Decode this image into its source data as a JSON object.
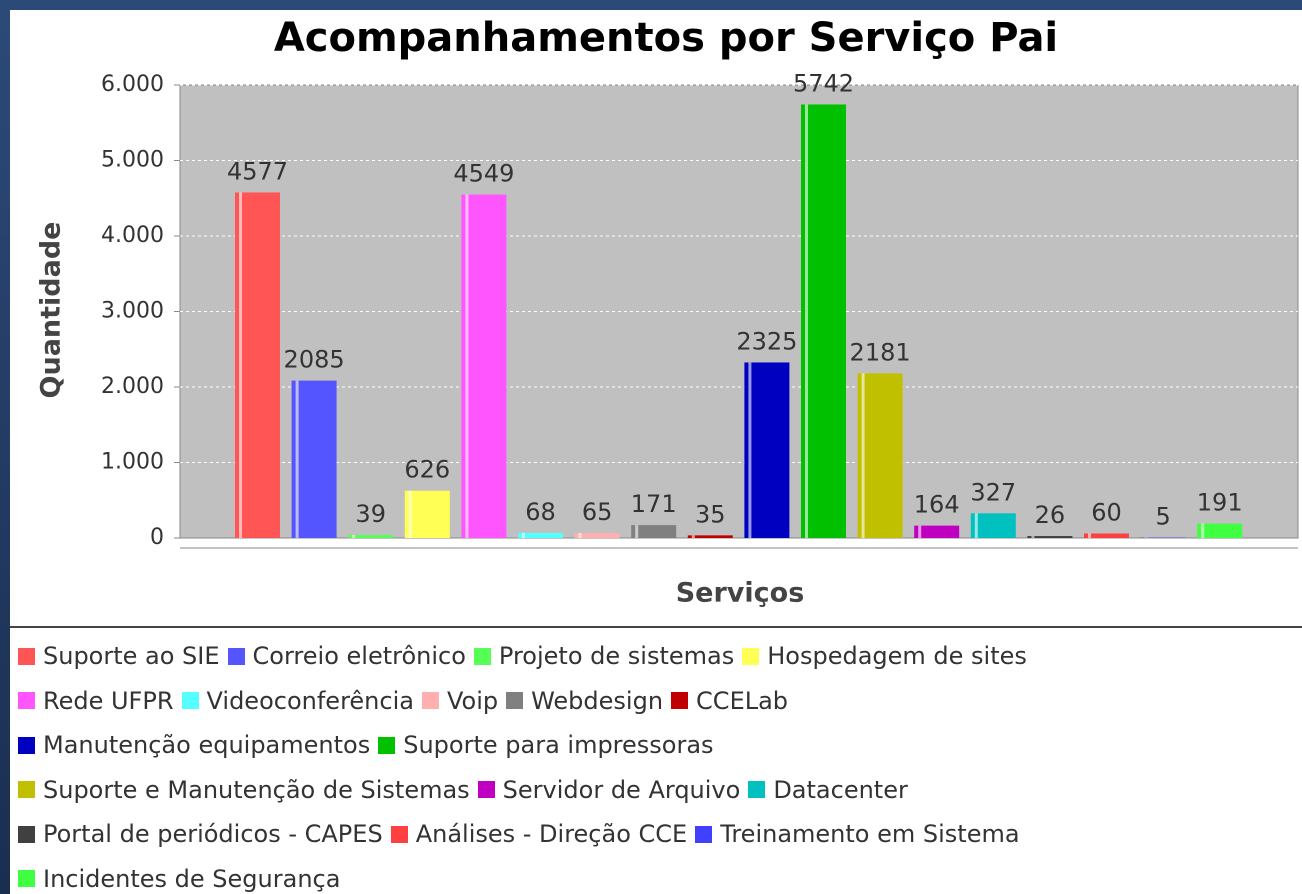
{
  "chart_data": {
    "type": "bar",
    "title": "Acompanhamentos por Serviço Pai",
    "xlabel": "Serviços",
    "ylabel": "Quantidade",
    "categories": [
      null
    ],
    "series": [
      {
        "name": "Suporte ao SIE",
        "color": "#ff5555",
        "values": [
          4577
        ]
      },
      {
        "name": "Correio eletrônico",
        "color": "#5555ff",
        "values": [
          2085
        ]
      },
      {
        "name": "Projeto de sistemas",
        "color": "#55ff55",
        "values": [
          39
        ]
      },
      {
        "name": "Hospedagem de sites",
        "color": "#ffff55",
        "values": [
          626
        ]
      },
      {
        "name": "Rede UFPR",
        "color": "#ff55ff",
        "values": [
          4549
        ]
      },
      {
        "name": "Videoconferência",
        "color": "#55ffff",
        "values": [
          68
        ]
      },
      {
        "name": "Voip",
        "color": "#ffafaf",
        "values": [
          65
        ]
      },
      {
        "name": "Webdesign",
        "color": "#808080",
        "values": [
          171
        ]
      },
      {
        "name": "CCELab",
        "color": "#c00000",
        "values": [
          35
        ]
      },
      {
        "name": "Manutenção equipamentos",
        "color": "#0000c0",
        "values": [
          2325
        ]
      },
      {
        "name": "Suporte para impressoras",
        "color": "#00c000",
        "values": [
          5742
        ]
      },
      {
        "name": "Suporte e Manutenção de Sistemas",
        "color": "#c0c000",
        "values": [
          2181
        ]
      },
      {
        "name": "Servidor de Arquivo",
        "color": "#c000c0",
        "values": [
          164
        ]
      },
      {
        "name": "Datacenter",
        "color": "#00c0c0",
        "values": [
          327
        ]
      },
      {
        "name": "Portal de periódicos - CAPES",
        "color": "#404040",
        "values": [
          26
        ]
      },
      {
        "name": "Análises - Direção CCE",
        "color": "#ff4040",
        "values": [
          60
        ]
      },
      {
        "name": "Treinamento em Sistema",
        "color": "#4040ff",
        "values": [
          5
        ]
      },
      {
        "name": "Incidentes de Segurança",
        "color": "#40ff40",
        "values": [
          191
        ]
      }
    ],
    "ylim": [
      0,
      6000
    ],
    "yticks": [
      0,
      {
        "value": 1000,
        "label": "1.000"
      },
      {
        "value": 2000,
        "label": "2.000"
      },
      {
        "value": 3000,
        "label": "3.000"
      },
      {
        "value": 4000,
        "label": "4.000"
      },
      {
        "value": 5000,
        "label": "5.000"
      },
      {
        "value": 6000,
        "label": "6.000"
      }
    ],
    "grid": true,
    "legend": "bottom"
  }
}
